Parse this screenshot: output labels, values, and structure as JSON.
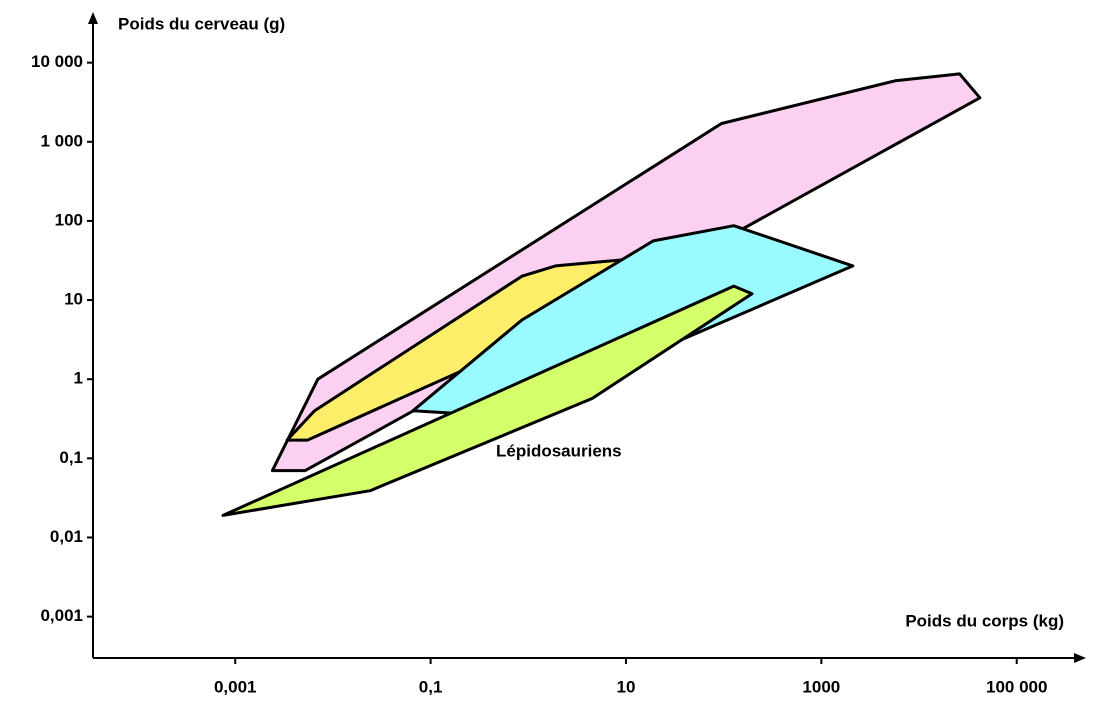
{
  "chart_data": {
    "type": "polygon",
    "y_label": "Poids du cerveau (g)",
    "x_label": "Poids du corps (kg)",
    "annotation": "Lépidosauriens",
    "log_x": true,
    "log_y": true,
    "xlim": [
      3.5e-05,
      500000
    ],
    "ylim": [
      0.0003,
      40000
    ],
    "xticks": [
      {
        "value": 0.001,
        "label": "0,001"
      },
      {
        "value": 0.1,
        "label": "0,1"
      },
      10,
      1000,
      {
        "value": 100000,
        "label": "100 000"
      }
    ],
    "yticks": [
      {
        "value": 0.001,
        "label": "0,001"
      },
      {
        "value": 0.01,
        "label": "0,01"
      },
      {
        "value": 0.1,
        "label": "0,1"
      },
      1,
      10,
      100,
      {
        "value": 1000,
        "label": "1 000"
      },
      {
        "value": 10000,
        "label": "10 000"
      }
    ],
    "series": [
      {
        "color": "#fcd0f0",
        "x": [
          0.007,
          95,
          5700,
          26000,
          42000,
          0.0052,
          0.0024
        ],
        "y": [
          1,
          1700,
          5900,
          7200,
          3600,
          0.07,
          0.07
        ]
      },
      {
        "color": "#fdee6a",
        "x": [
          0.0034,
          0.0065,
          0.86,
          1.9,
          120,
          0.0055
        ],
        "y": [
          0.17,
          0.4,
          20,
          27,
          43,
          0.17
        ]
      },
      {
        "color": "#99fbff",
        "x": [
          0.066,
          0.86,
          19,
          127,
          2100,
          0.56
        ],
        "y": [
          0.4,
          5.6,
          56,
          87,
          27,
          0.34
        ]
      },
      {
        "color": "#d4ff6a",
        "x": [
          0.00075,
          127,
          195,
          4.5,
          0.024
        ],
        "y": [
          0.019,
          15,
          12,
          0.57,
          0.039
        ]
      }
    ]
  }
}
